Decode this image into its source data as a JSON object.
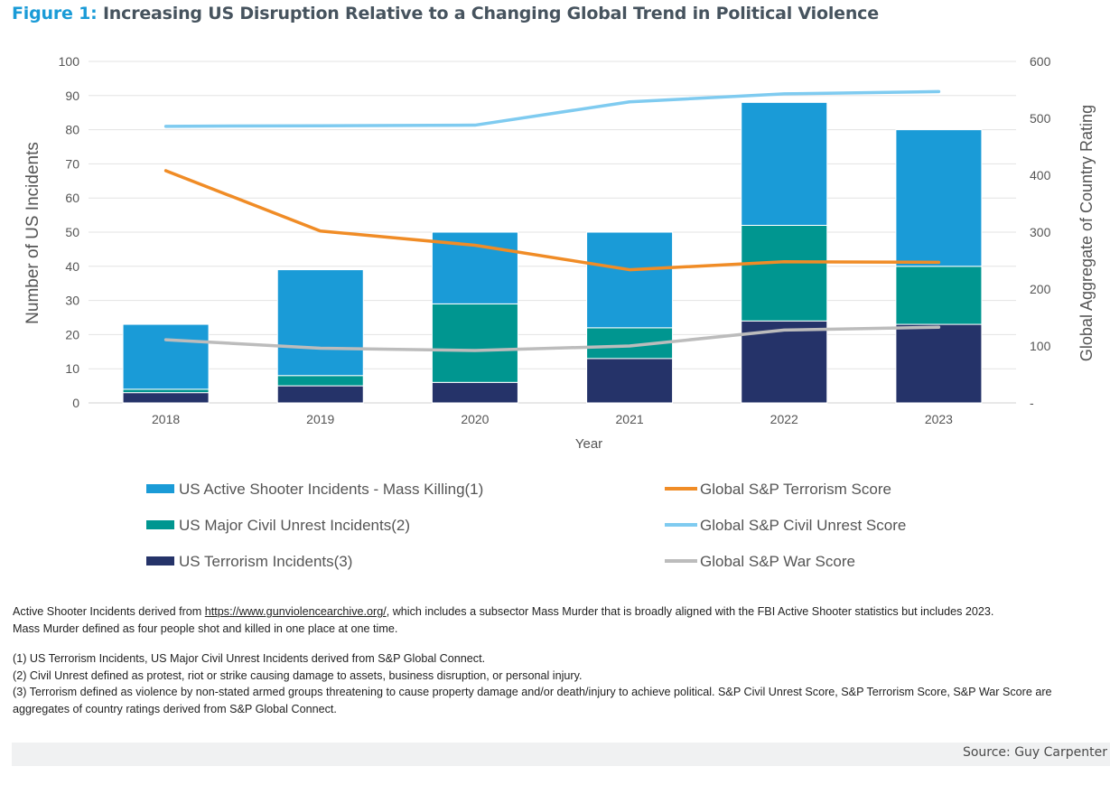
{
  "figure": {
    "label": "Figure 1:",
    "title": "Increasing US Disruption Relative to a Changing Global Trend in Political Violence"
  },
  "chart_data": {
    "type": "bar",
    "stacked": true,
    "categories": [
      "2018",
      "2019",
      "2020",
      "2021",
      "2022",
      "2023"
    ],
    "xlabel": "Year",
    "ylabel": "Number of US Incidents",
    "y2label": "Global Aggregate of Country Rating",
    "ylim": [
      0,
      100
    ],
    "yticks": [
      "0",
      "10",
      "20",
      "30",
      "40",
      "50",
      "60",
      "70",
      "80",
      "90",
      "100"
    ],
    "y2lim": [
      0,
      600
    ],
    "y2ticks": [
      "-",
      "100",
      "200",
      "300",
      "400",
      "500",
      "600"
    ],
    "grid": true,
    "legend_position": "bottom",
    "series": [
      {
        "name": "US Terrorism Incidents(3)",
        "kind": "bar",
        "axis": "left",
        "color": "#253369",
        "values": [
          3,
          5,
          6,
          13,
          24,
          23
        ]
      },
      {
        "name": "US Major Civil Unrest Incidents(2)",
        "kind": "bar",
        "axis": "left",
        "color": "#009690",
        "values": [
          1,
          3,
          23,
          9,
          28,
          17
        ]
      },
      {
        "name": "US Active Shooter Incidents - Mass Killing(1)",
        "kind": "bar",
        "axis": "left",
        "color": "#1a9bd7",
        "values": [
          19,
          31,
          21,
          28,
          36,
          40
        ]
      },
      {
        "name": "Global S&P Terrorism Score",
        "kind": "line",
        "axis": "right",
        "color": "#f08c26",
        "values": [
          408,
          302,
          277,
          234,
          248,
          247
        ]
      },
      {
        "name": "Global S&P Civil Unrest Score",
        "kind": "line",
        "axis": "right",
        "color": "#7fcbf0",
        "values": [
          486,
          487,
          488,
          529,
          543,
          547
        ]
      },
      {
        "name": "Global S&P War Score",
        "kind": "line",
        "axis": "right",
        "color": "#bcbcbc",
        "values": [
          111,
          96,
          92,
          100,
          128,
          133
        ]
      }
    ]
  },
  "notes": {
    "line1_pre": "Active Shooter Incidents derived from ",
    "link": "https://www.gunviolencearchive.org/",
    "line1_post": ", which includes a subsector Mass Murder that is broadly aligned with the FBI Active Shooter statistics but includes 2023.",
    "line2": "Mass Murder defined as four people shot and killed in one place at one time.",
    "fn1": "(1) US Terrorism Incidents, US Major Civil Unrest Incidents derived from S&P Global Connect.",
    "fn2": "(2) Civil Unrest defined as protest, riot or strike causing damage to assets, business disruption, or personal injury.",
    "fn3": "(3) Terrorism defined as violence by non-stated armed groups threatening to cause property damage and/or death/injury to achieve political. S&P Civil Unrest Score, S&P Terrorism Score, S&P War Score are aggregates of country ratings derived from S&P Global Connect."
  },
  "source": "Source: Guy Carpenter"
}
